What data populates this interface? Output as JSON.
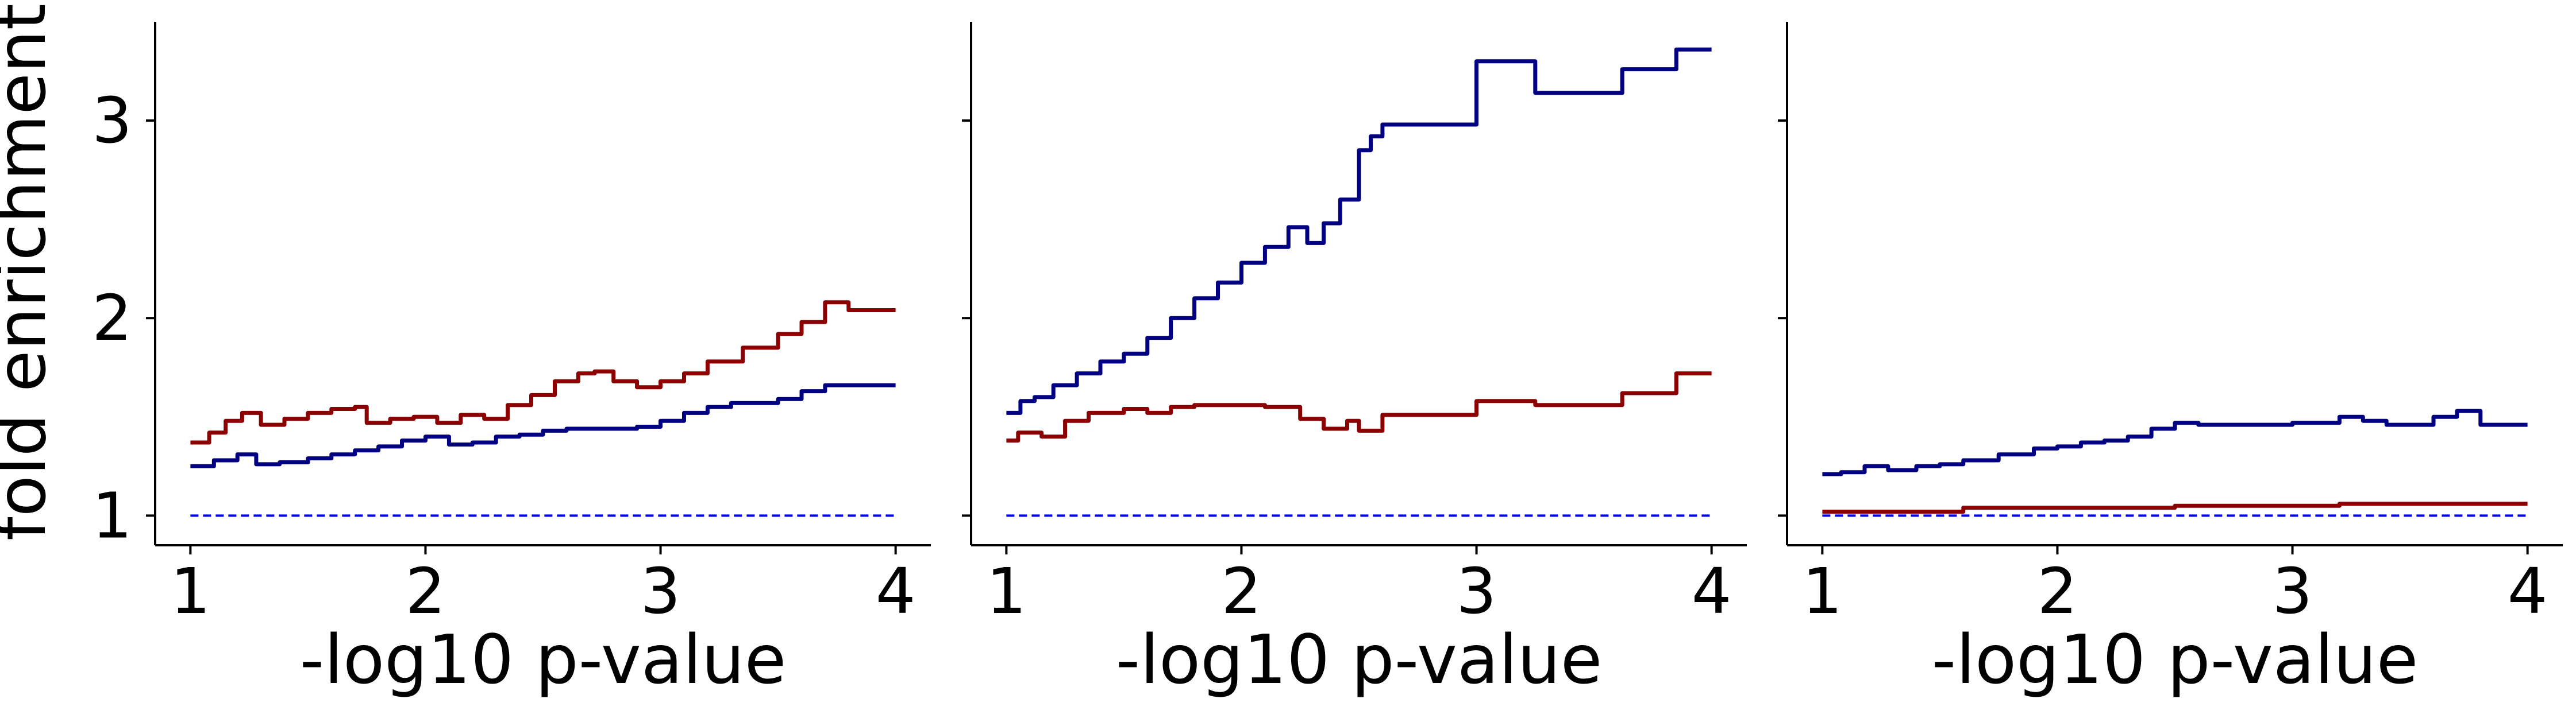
{
  "chart_data": [
    {
      "type": "line",
      "xlabel": "-log10 p-value",
      "ylabel": "fold enrichment",
      "xlim": [
        0.85,
        4.15
      ],
      "ylim": [
        0.85,
        3.5
      ],
      "xticks": [
        1,
        2,
        3,
        4
      ],
      "yticks": [
        1,
        2,
        3
      ],
      "grid": false,
      "series": [
        {
          "color": "#8b0000",
          "step": true,
          "points": [
            [
              1.0,
              1.37
            ],
            [
              1.08,
              1.42
            ],
            [
              1.15,
              1.48
            ],
            [
              1.22,
              1.52
            ],
            [
              1.3,
              1.46
            ],
            [
              1.4,
              1.49
            ],
            [
              1.5,
              1.52
            ],
            [
              1.6,
              1.54
            ],
            [
              1.7,
              1.55
            ],
            [
              1.75,
              1.47
            ],
            [
              1.85,
              1.49
            ],
            [
              1.95,
              1.5
            ],
            [
              2.05,
              1.47
            ],
            [
              2.15,
              1.51
            ],
            [
              2.25,
              1.49
            ],
            [
              2.35,
              1.56
            ],
            [
              2.45,
              1.61
            ],
            [
              2.55,
              1.68
            ],
            [
              2.65,
              1.72
            ],
            [
              2.72,
              1.73
            ],
            [
              2.8,
              1.68
            ],
            [
              2.9,
              1.65
            ],
            [
              3.0,
              1.68
            ],
            [
              3.1,
              1.72
            ],
            [
              3.2,
              1.78
            ],
            [
              3.35,
              1.85
            ],
            [
              3.5,
              1.92
            ],
            [
              3.6,
              1.98
            ],
            [
              3.7,
              2.08
            ],
            [
              3.8,
              2.04
            ],
            [
              4.0,
              2.04
            ]
          ]
        },
        {
          "color": "#000080",
          "step": true,
          "points": [
            [
              1.0,
              1.25
            ],
            [
              1.1,
              1.28
            ],
            [
              1.2,
              1.31
            ],
            [
              1.28,
              1.26
            ],
            [
              1.38,
              1.27
            ],
            [
              1.5,
              1.29
            ],
            [
              1.6,
              1.31
            ],
            [
              1.7,
              1.33
            ],
            [
              1.8,
              1.35
            ],
            [
              1.9,
              1.38
            ],
            [
              2.0,
              1.4
            ],
            [
              2.1,
              1.36
            ],
            [
              2.2,
              1.37
            ],
            [
              2.3,
              1.4
            ],
            [
              2.4,
              1.41
            ],
            [
              2.5,
              1.43
            ],
            [
              2.6,
              1.44
            ],
            [
              2.8,
              1.44
            ],
            [
              2.9,
              1.45
            ],
            [
              3.0,
              1.48
            ],
            [
              3.1,
              1.52
            ],
            [
              3.2,
              1.55
            ],
            [
              3.3,
              1.57
            ],
            [
              3.5,
              1.59
            ],
            [
              3.6,
              1.63
            ],
            [
              3.7,
              1.66
            ],
            [
              4.0,
              1.66
            ]
          ]
        }
      ],
      "baseline": {
        "y": 1.0,
        "color": "#0000ff",
        "style": "dashed"
      }
    },
    {
      "type": "line",
      "xlabel": "-log10 p-value",
      "xlim": [
        0.85,
        4.15
      ],
      "ylim": [
        0.85,
        3.5
      ],
      "xticks": [
        1,
        2,
        3,
        4
      ],
      "grid": false,
      "series": [
        {
          "color": "#000080",
          "step": true,
          "points": [
            [
              1.0,
              1.52
            ],
            [
              1.06,
              1.58
            ],
            [
              1.12,
              1.6
            ],
            [
              1.2,
              1.66
            ],
            [
              1.3,
              1.72
            ],
            [
              1.4,
              1.78
            ],
            [
              1.5,
              1.82
            ],
            [
              1.6,
              1.9
            ],
            [
              1.7,
              2.0
            ],
            [
              1.8,
              2.1
            ],
            [
              1.9,
              2.18
            ],
            [
              2.0,
              2.28
            ],
            [
              2.1,
              2.36
            ],
            [
              2.2,
              2.46
            ],
            [
              2.28,
              2.38
            ],
            [
              2.35,
              2.48
            ],
            [
              2.42,
              2.6
            ],
            [
              2.5,
              2.85
            ],
            [
              2.55,
              2.92
            ],
            [
              2.6,
              2.98
            ],
            [
              2.9,
              2.98
            ],
            [
              3.0,
              3.3
            ],
            [
              3.2,
              3.3
            ],
            [
              3.25,
              3.14
            ],
            [
              3.6,
              3.14
            ],
            [
              3.62,
              3.26
            ],
            [
              3.8,
              3.26
            ],
            [
              3.85,
              3.36
            ],
            [
              4.0,
              3.36
            ]
          ]
        },
        {
          "color": "#8b0000",
          "step": true,
          "points": [
            [
              1.0,
              1.38
            ],
            [
              1.05,
              1.42
            ],
            [
              1.15,
              1.4
            ],
            [
              1.25,
              1.48
            ],
            [
              1.35,
              1.52
            ],
            [
              1.5,
              1.54
            ],
            [
              1.6,
              1.52
            ],
            [
              1.7,
              1.55
            ],
            [
              1.8,
              1.56
            ],
            [
              2.1,
              1.55
            ],
            [
              2.25,
              1.49
            ],
            [
              2.35,
              1.44
            ],
            [
              2.45,
              1.48
            ],
            [
              2.5,
              1.43
            ],
            [
              2.6,
              1.51
            ],
            [
              3.0,
              1.51
            ],
            [
              3.0,
              1.58
            ],
            [
              3.2,
              1.58
            ],
            [
              3.25,
              1.56
            ],
            [
              3.6,
              1.56
            ],
            [
              3.62,
              1.62
            ],
            [
              3.85,
              1.62
            ],
            [
              3.85,
              1.72
            ],
            [
              4.0,
              1.72
            ]
          ]
        }
      ],
      "baseline": {
        "y": 1.0,
        "color": "#0000ff",
        "style": "dashed"
      }
    },
    {
      "type": "line",
      "xlabel": "-log10 p-value",
      "xlim": [
        0.85,
        4.15
      ],
      "ylim": [
        0.85,
        3.5
      ],
      "xticks": [
        1,
        2,
        3,
        4
      ],
      "grid": false,
      "series": [
        {
          "color": "#000080",
          "step": true,
          "points": [
            [
              1.0,
              1.21
            ],
            [
              1.08,
              1.22
            ],
            [
              1.18,
              1.25
            ],
            [
              1.28,
              1.23
            ],
            [
              1.4,
              1.25
            ],
            [
              1.5,
              1.26
            ],
            [
              1.6,
              1.28
            ],
            [
              1.75,
              1.31
            ],
            [
              1.9,
              1.34
            ],
            [
              2.0,
              1.35
            ],
            [
              2.1,
              1.37
            ],
            [
              2.2,
              1.38
            ],
            [
              2.3,
              1.4
            ],
            [
              2.4,
              1.44
            ],
            [
              2.5,
              1.47
            ],
            [
              2.6,
              1.46
            ],
            [
              2.8,
              1.46
            ],
            [
              3.0,
              1.47
            ],
            [
              3.2,
              1.5
            ],
            [
              3.3,
              1.48
            ],
            [
              3.4,
              1.46
            ],
            [
              3.6,
              1.5
            ],
            [
              3.7,
              1.53
            ],
            [
              3.8,
              1.46
            ],
            [
              4.0,
              1.46
            ]
          ]
        },
        {
          "color": "#8b0000",
          "step": true,
          "points": [
            [
              1.0,
              1.02
            ],
            [
              1.4,
              1.02
            ],
            [
              1.6,
              1.04
            ],
            [
              2.4,
              1.04
            ],
            [
              2.5,
              1.05
            ],
            [
              3.2,
              1.05
            ],
            [
              3.2,
              1.06
            ],
            [
              4.0,
              1.06
            ]
          ]
        }
      ],
      "baseline": {
        "y": 1.0,
        "color": "#0000ff",
        "style": "dashed"
      }
    }
  ]
}
